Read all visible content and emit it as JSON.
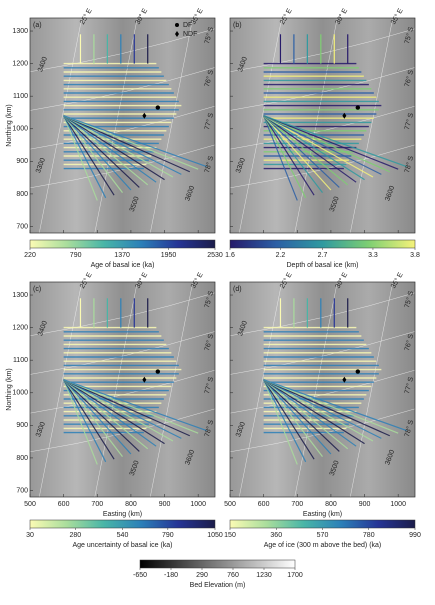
{
  "axes": {
    "xlabel": "Easting (km)",
    "ylabel": "Northing (km)",
    "xlim": [
      500,
      1050
    ],
    "ylim": [
      680,
      1340
    ],
    "xticks": [
      500,
      600,
      700,
      800,
      900,
      1000
    ],
    "yticks": [
      700,
      800,
      900,
      1000,
      1100,
      1200,
      1300
    ]
  },
  "sites": [
    {
      "name": "DF",
      "x": 880,
      "y": 1065,
      "marker": "circle"
    },
    {
      "name": "NDF",
      "x": 840,
      "y": 1040,
      "marker": "diamond"
    }
  ],
  "map_labels": {
    "longitude": [
      "25° E",
      "30° E",
      "35° E"
    ],
    "latitude": [
      "75° S",
      "76° S",
      "77° S",
      "78° S"
    ],
    "contours": [
      "3400",
      "3300",
      "3500",
      "3600"
    ]
  },
  "panels": [
    {
      "label": "(a)",
      "colorbar": {
        "label": "Age of basal ice (ka)",
        "lim": [
          220,
          2530
        ],
        "ticks": [
          220,
          790,
          1370,
          1950,
          2530
        ],
        "colormap": [
          "#fbfbb4",
          "#a9dd9c",
          "#48b5a7",
          "#2c80b8",
          "#263596",
          "#1b1c4a"
        ]
      }
    },
    {
      "label": "(b)",
      "colorbar": {
        "label": "Depth of basal ice (km)",
        "lim": [
          1.6,
          3.8
        ],
        "ticks": [
          1.6,
          2.2,
          2.7,
          3.3,
          3.8
        ],
        "colormap": [
          "#261a6a",
          "#2c5fa5",
          "#2f9aa0",
          "#7ecf72",
          "#f5f27a"
        ]
      }
    },
    {
      "label": "(c)",
      "colorbar": {
        "label": "Age uncertainty of basal ice (ka)",
        "lim": [
          30,
          1050
        ],
        "ticks": [
          30,
          280,
          540,
          790,
          1050
        ],
        "colormap": [
          "#fbfbb4",
          "#a9dd9c",
          "#48b5a7",
          "#2c80b8",
          "#263596",
          "#1b1c4a"
        ]
      }
    },
    {
      "label": "(d)",
      "colorbar": {
        "label": "Age of ice (300 m above the bed) (ka)",
        "lim": [
          150,
          990
        ],
        "ticks": [
          150,
          360,
          570,
          780,
          990
        ],
        "colormap": [
          "#fbfbb4",
          "#a9dd9c",
          "#48b5a7",
          "#2c80b8",
          "#263596",
          "#1b1c4a"
        ]
      }
    }
  ],
  "bed_colorbar": {
    "label": "Bed Elevation (m)",
    "lim": [
      -650,
      1700
    ],
    "ticks": [
      -650,
      -180,
      290,
      760,
      1230,
      1700
    ],
    "colormap": [
      "#000000",
      "#555555",
      "#aaaaaa",
      "#ffffff"
    ]
  }
}
